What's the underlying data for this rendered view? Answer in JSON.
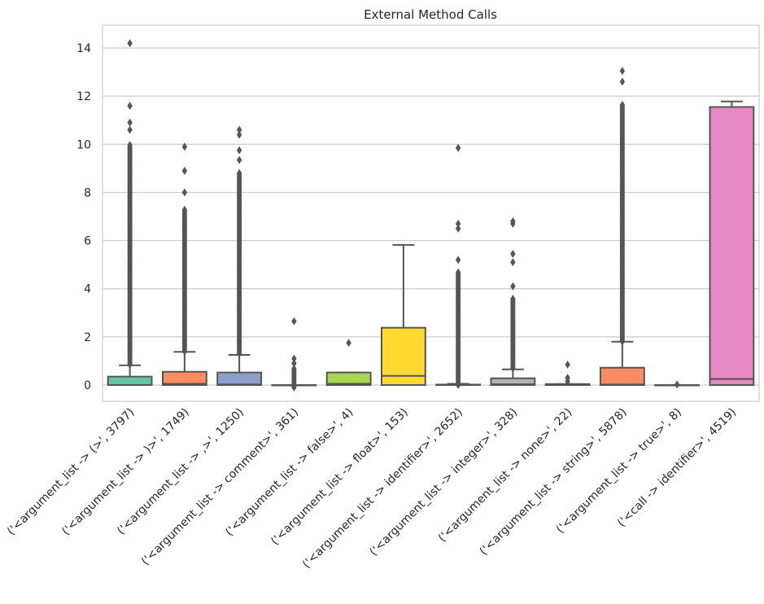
{
  "chart_data": {
    "type": "box",
    "title": "External Method Calls",
    "xlabel": "",
    "ylabel": "",
    "ylim": [
      -0.7,
      14.9
    ],
    "yticks": [
      0,
      2,
      4,
      6,
      8,
      10,
      12,
      14
    ],
    "grid": true,
    "legend": "none",
    "categories": [
      "('<argument_list -> (>', 3797)",
      "('<argument_list -> )>', 1749)",
      "('<argument_list -> ,>', 1250)",
      "('<argument_list -> comment>', 361)",
      "('<argument_list -> false>', 4)",
      "('<argument_list -> float>', 153)",
      "('<argument_list -> identifier>', 2652)",
      "('<argument_list -> integer>', 328)",
      "('<argument_list -> none>', 22)",
      "('<argument_list -> string>', 5878)",
      "('<argument_list -> true>', 8)",
      "('<call -> identifier>', 4519)"
    ],
    "series": [
      {
        "name": "('<argument_list -> (>', 3797)",
        "color": "#66c2a5",
        "whislo": 0,
        "q1": 0,
        "median": 0,
        "q3": 0.35,
        "whishi": 0.82,
        "outliers_range": [
          0.85,
          10.0
        ],
        "outliers_extra": [
          10.6,
          10.9,
          11.6,
          14.2
        ]
      },
      {
        "name": "('<argument_list -> )>', 1749)",
        "color": "#fc8d62",
        "whislo": 0,
        "q1": 0,
        "median": 0.05,
        "q3": 0.55,
        "whishi": 1.38,
        "outliers_range": [
          1.4,
          7.3
        ],
        "outliers_extra": [
          8.0,
          8.9,
          9.9
        ]
      },
      {
        "name": "('<argument_list -> ,>', 1250)",
        "color": "#8da0cb",
        "whislo": 0,
        "q1": 0,
        "median": 0.02,
        "q3": 0.52,
        "whishi": 1.25,
        "outliers_range": [
          1.3,
          8.8
        ],
        "outliers_extra": [
          9.35,
          9.75,
          10.4,
          10.6
        ]
      },
      {
        "name": "('<argument_list -> comment>', 361)",
        "color": "#e78ac3",
        "whislo": 0,
        "q1": 0,
        "median": 0,
        "q3": 0,
        "whishi": 0,
        "outliers_range": [
          -0.1,
          0.7
        ],
        "outliers_extra": [
          0.9,
          1.1,
          2.65
        ]
      },
      {
        "name": "('<argument_list -> false>', 4)",
        "color": "#a6d854",
        "whislo": 0,
        "q1": 0,
        "median": 0.05,
        "q3": 0.52,
        "whishi": 0.52,
        "outliers_range": null,
        "outliers_extra": [
          1.75
        ]
      },
      {
        "name": "('<argument_list -> float>', 153)",
        "color": "#ffd92f",
        "whislo": 0,
        "q1": 0,
        "median": 0.38,
        "q3": 2.38,
        "whishi": 5.82,
        "outliers_range": null,
        "outliers_extra": []
      },
      {
        "name": "('<argument_list -> identifier>', 2652)",
        "color": "#e5c494",
        "whislo": 0,
        "q1": 0,
        "median": 0,
        "q3": 0.02,
        "whishi": 0.05,
        "outliers_range": [
          0.0,
          4.7
        ],
        "outliers_extra": [
          5.2,
          6.5,
          6.7,
          9.85
        ]
      },
      {
        "name": "('<argument_list -> integer>', 328)",
        "color": "#b3b3b3",
        "whislo": 0,
        "q1": 0,
        "median": 0.03,
        "q3": 0.28,
        "whishi": 0.65,
        "outliers_range": [
          0.7,
          3.6
        ],
        "outliers_extra": [
          4.1,
          5.1,
          5.45,
          6.7,
          6.8
        ]
      },
      {
        "name": "('<argument_list -> none>', 22)",
        "color": "#66c2a5",
        "whislo": 0,
        "q1": 0,
        "median": 0.02,
        "q3": 0.04,
        "whishi": 0.04,
        "outliers_range": null,
        "outliers_extra": [
          0.15,
          0.3,
          0.85
        ]
      },
      {
        "name": "('<argument_list -> string>', 5878)",
        "color": "#fc8d62",
        "whislo": 0,
        "q1": 0,
        "median": 0.02,
        "q3": 0.72,
        "whishi": 1.8,
        "outliers_range": [
          1.8,
          11.7
        ],
        "outliers_extra": [
          12.6,
          13.05
        ]
      },
      {
        "name": "('<argument_list -> true>', 8)",
        "color": "#8da0cb",
        "whislo": 0,
        "q1": 0,
        "median": 0,
        "q3": 0,
        "whishi": 0,
        "outliers_range": null,
        "outliers_extra": [
          0.02
        ]
      },
      {
        "name": "('<call -> identifier>', 4519)",
        "color": "#e78ac3",
        "whislo": 0,
        "q1": 0,
        "median": 0.25,
        "q3": 11.55,
        "whishi": 11.78,
        "outliers_range": null,
        "outliers_extra": []
      }
    ]
  }
}
